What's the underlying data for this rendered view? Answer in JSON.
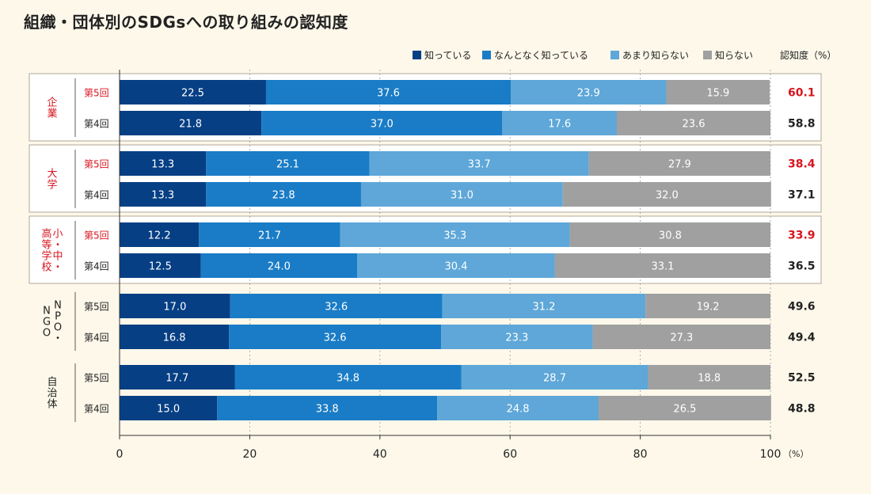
{
  "title": "組織・団体別のSDGsへの取り組みの認知度",
  "colors": {
    "know": "#063f84",
    "somewhat": "#1a7cc6",
    "barely": "#5ea7d8",
    "unknown": "#a0a0a0",
    "highlight": "#d7141e",
    "frame": "#b1a998",
    "background": "#fdf8ea"
  },
  "chart_data": {
    "type": "bar",
    "orientation": "horizontal",
    "stacked": true,
    "xlim": [
      0,
      100
    ],
    "xticks": [
      0,
      20,
      40,
      60,
      80,
      100
    ],
    "x_unit": "（%）",
    "awareness_header": "認知度（%）",
    "legend_position": "top-right",
    "series": [
      {
        "name": "知っている",
        "color_key": "know"
      },
      {
        "name": "なんとなく知っている",
        "color_key": "somewhat"
      },
      {
        "name": "あまり知らない",
        "color_key": "barely"
      },
      {
        "name": "知らない",
        "color_key": "unknown"
      }
    ],
    "groups": [
      {
        "name": "企業",
        "boxed": true,
        "label_orientation": "vertical",
        "rows": [
          {
            "round": "第5回",
            "highlight": true,
            "values": [
              22.5,
              37.6,
              23.9,
              15.9
            ],
            "awareness": 60.1
          },
          {
            "round": "第4回",
            "highlight": false,
            "values": [
              21.8,
              37.0,
              17.6,
              23.6
            ],
            "awareness": 58.8
          }
        ]
      },
      {
        "name": "大学",
        "boxed": true,
        "label_orientation": "vertical",
        "rows": [
          {
            "round": "第5回",
            "highlight": true,
            "values": [
              13.3,
              25.1,
              33.7,
              27.9
            ],
            "awareness": 38.4
          },
          {
            "round": "第4回",
            "highlight": false,
            "values": [
              13.3,
              23.8,
              31.0,
              32.0
            ],
            "awareness": 37.1
          }
        ]
      },
      {
        "name": "小・中・高等学校",
        "boxed": true,
        "label_orientation": "vertical-rl",
        "rows": [
          {
            "round": "第5回",
            "highlight": true,
            "values": [
              12.2,
              21.7,
              35.3,
              30.8
            ],
            "awareness": 33.9
          },
          {
            "round": "第4回",
            "highlight": false,
            "values": [
              12.5,
              24.0,
              30.4,
              33.1
            ],
            "awareness": 36.5
          }
        ]
      },
      {
        "name": "NPO・NGO",
        "boxed": false,
        "label_orientation": "vertical-rl",
        "rows": [
          {
            "round": "第5回",
            "highlight": false,
            "values": [
              17.0,
              32.6,
              31.2,
              19.2
            ],
            "awareness": 49.6
          },
          {
            "round": "第4回",
            "highlight": false,
            "values": [
              16.8,
              32.6,
              23.3,
              27.3
            ],
            "awareness": 49.4
          }
        ]
      },
      {
        "name": "自治体",
        "boxed": false,
        "label_orientation": "vertical",
        "rows": [
          {
            "round": "第5回",
            "highlight": false,
            "values": [
              17.7,
              34.8,
              28.7,
              18.8
            ],
            "awareness": 52.5
          },
          {
            "round": "第4回",
            "highlight": false,
            "values": [
              15.0,
              33.8,
              24.8,
              26.5
            ],
            "awareness": 48.8
          }
        ]
      }
    ]
  }
}
